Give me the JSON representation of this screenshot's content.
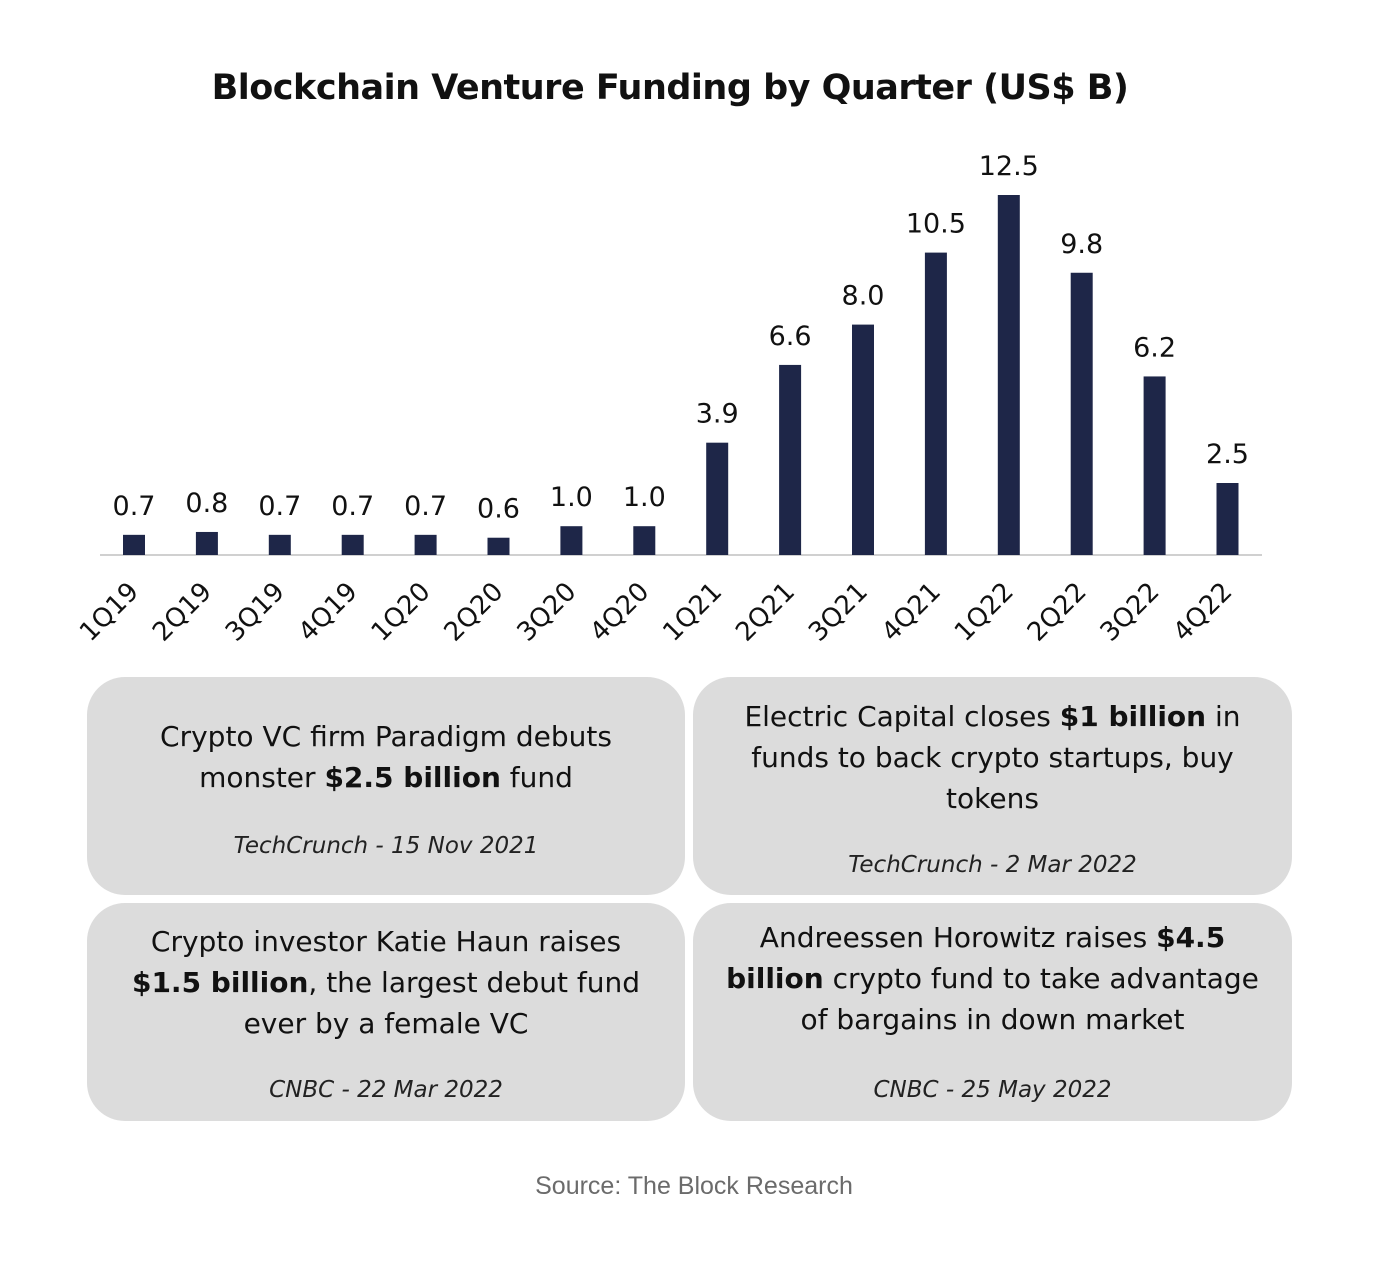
{
  "chart_data": {
    "type": "bar",
    "title": "Blockchain Venture Funding by Quarter (US$ B)",
    "categories": [
      "1Q19",
      "2Q19",
      "3Q19",
      "4Q19",
      "1Q20",
      "2Q20",
      "3Q20",
      "4Q20",
      "1Q21",
      "2Q21",
      "3Q21",
      "4Q21",
      "1Q22",
      "2Q22",
      "3Q22",
      "4Q22"
    ],
    "values": [
      0.7,
      0.8,
      0.7,
      0.7,
      0.7,
      0.6,
      1.0,
      1.0,
      3.9,
      6.6,
      8.0,
      10.5,
      12.5,
      9.8,
      6.2,
      2.5
    ],
    "value_labels": [
      "0.7",
      "0.8",
      "0.7",
      "0.7",
      "0.7",
      "0.6",
      "1.0",
      "1.0",
      "3.9",
      "6.6",
      "8.0",
      "10.5",
      "12.5",
      "9.8",
      "6.2",
      "2.5"
    ],
    "bar_color": "#1e2648",
    "axis_color": "#d0d0d0",
    "grid": false,
    "legend": "none"
  },
  "cards": [
    {
      "headline": [
        {
          "t": "Crypto VC firm Paradigm debuts monster ",
          "b": false
        },
        {
          "t": "$2.5 billion",
          "b": true
        },
        {
          "t": " fund",
          "b": false
        }
      ],
      "cite": "TechCrunch - 15 Nov 2021"
    },
    {
      "headline": [
        {
          "t": "Electric Capital closes ",
          "b": false
        },
        {
          "t": "$1 billion",
          "b": true
        },
        {
          "t": " in funds to back crypto startups, buy tokens",
          "b": false
        }
      ],
      "cite": "TechCrunch - 2 Mar 2022"
    },
    {
      "headline": [
        {
          "t": "Crypto investor Katie Haun raises ",
          "b": false
        },
        {
          "t": "$1.5 billion",
          "b": true
        },
        {
          "t": ", the largest debut fund ever by a female VC",
          "b": false
        }
      ],
      "cite": "CNBC - 22 Mar 2022"
    },
    {
      "headline": [
        {
          "t": "Andreessen Horowitz raises ",
          "b": false
        },
        {
          "t": "$4.5 billion",
          "b": true
        },
        {
          "t": " crypto fund to take advantage of bargains in down market",
          "b": false
        }
      ],
      "cite": "CNBC - 25 May 2022"
    }
  ],
  "source": "Source: The Block Research",
  "colors": {
    "card_background": "#dcdcdc",
    "source_text": "#6b6b6b"
  }
}
